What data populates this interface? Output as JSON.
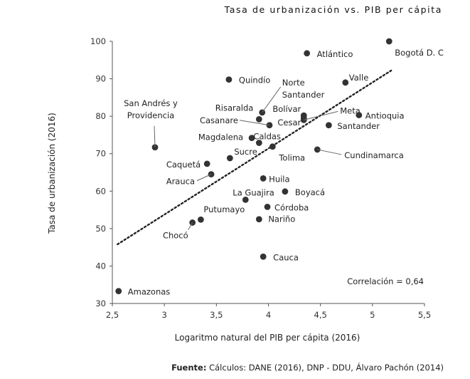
{
  "chart_data": {
    "type": "scatter",
    "title": "Tasa de urbanización vs. PIB per cápita",
    "xlabel": "Logaritmo natural del PIB per cápita (2016)",
    "ylabel": "Tasa de urbanización (2016)",
    "xlim": [
      2.5,
      5.5
    ],
    "ylim": [
      30,
      100
    ],
    "xticks": [
      "2,5",
      "3",
      "3,5",
      "4",
      "4,5",
      "5",
      "5,5"
    ],
    "yticks": [
      "30",
      "40",
      "50",
      "60",
      "70",
      "80",
      "90",
      "100"
    ],
    "points": [
      {
        "label": "Bogotá D. C",
        "x": 5.16,
        "y": 100.0
      },
      {
        "label": "Atlántico",
        "x": 4.37,
        "y": 96.8
      },
      {
        "label": "Valle",
        "x": 4.74,
        "y": 89.0
      },
      {
        "label": "Quindío",
        "x": 3.62,
        "y": 89.8
      },
      {
        "label": "Norte Santander",
        "x": 3.94,
        "y": 81.0
      },
      {
        "label": "Risaralda",
        "x": 3.91,
        "y": 79.2
      },
      {
        "label": "Bolívar",
        "x": 4.34,
        "y": 80.2
      },
      {
        "label": "Cesar",
        "x": 4.34,
        "y": 79.5
      },
      {
        "label": "Meta",
        "x": 4.34,
        "y": 79.0
      },
      {
        "label": "Antioquia",
        "x": 4.87,
        "y": 80.3
      },
      {
        "label": "Santander",
        "x": 4.58,
        "y": 77.6
      },
      {
        "label": "Casanare",
        "x": 4.01,
        "y": 77.6
      },
      {
        "label": "San Andrés y Providencia",
        "x": 2.91,
        "y": 71.7
      },
      {
        "label": "Magdalena",
        "x": 3.84,
        "y": 74.2
      },
      {
        "label": "Caldas",
        "x": 3.91,
        "y": 72.9
      },
      {
        "label": "Tolima",
        "x": 4.04,
        "y": 71.9
      },
      {
        "label": "Cundinamarca",
        "x": 4.47,
        "y": 71.1
      },
      {
        "label": "Sucre",
        "x": 3.63,
        "y": 68.8
      },
      {
        "label": "Caquetá",
        "x": 3.41,
        "y": 67.3
      },
      {
        "label": "Arauca",
        "x": 3.45,
        "y": 64.5
      },
      {
        "label": "Huila",
        "x": 3.95,
        "y": 63.4
      },
      {
        "label": "La Guajira",
        "x": 3.78,
        "y": 57.7
      },
      {
        "label": "Boyacá",
        "x": 4.16,
        "y": 59.9
      },
      {
        "label": "Córdoba",
        "x": 3.99,
        "y": 55.8
      },
      {
        "label": "Nariño",
        "x": 3.91,
        "y": 52.5
      },
      {
        "label": "Putumayo",
        "x": 3.35,
        "y": 52.4
      },
      {
        "label": "Chocó",
        "x": 3.27,
        "y": 51.6
      },
      {
        "label": "Cauca",
        "x": 3.95,
        "y": 42.5
      },
      {
        "label": "Amazonas",
        "x": 2.56,
        "y": 33.3
      }
    ],
    "trendline": {
      "type": "linear",
      "x": [
        2.55,
        5.18
      ],
      "y": [
        45.8,
        92.2
      ]
    },
    "annotation": "Correlación = 0,64",
    "grid": false,
    "point_color": "#333333"
  },
  "source": {
    "prefix": "Fuente:",
    "text": " Cálculos:  DANE (2016), DNP - DDU, Álvaro Pachón (2014)"
  }
}
